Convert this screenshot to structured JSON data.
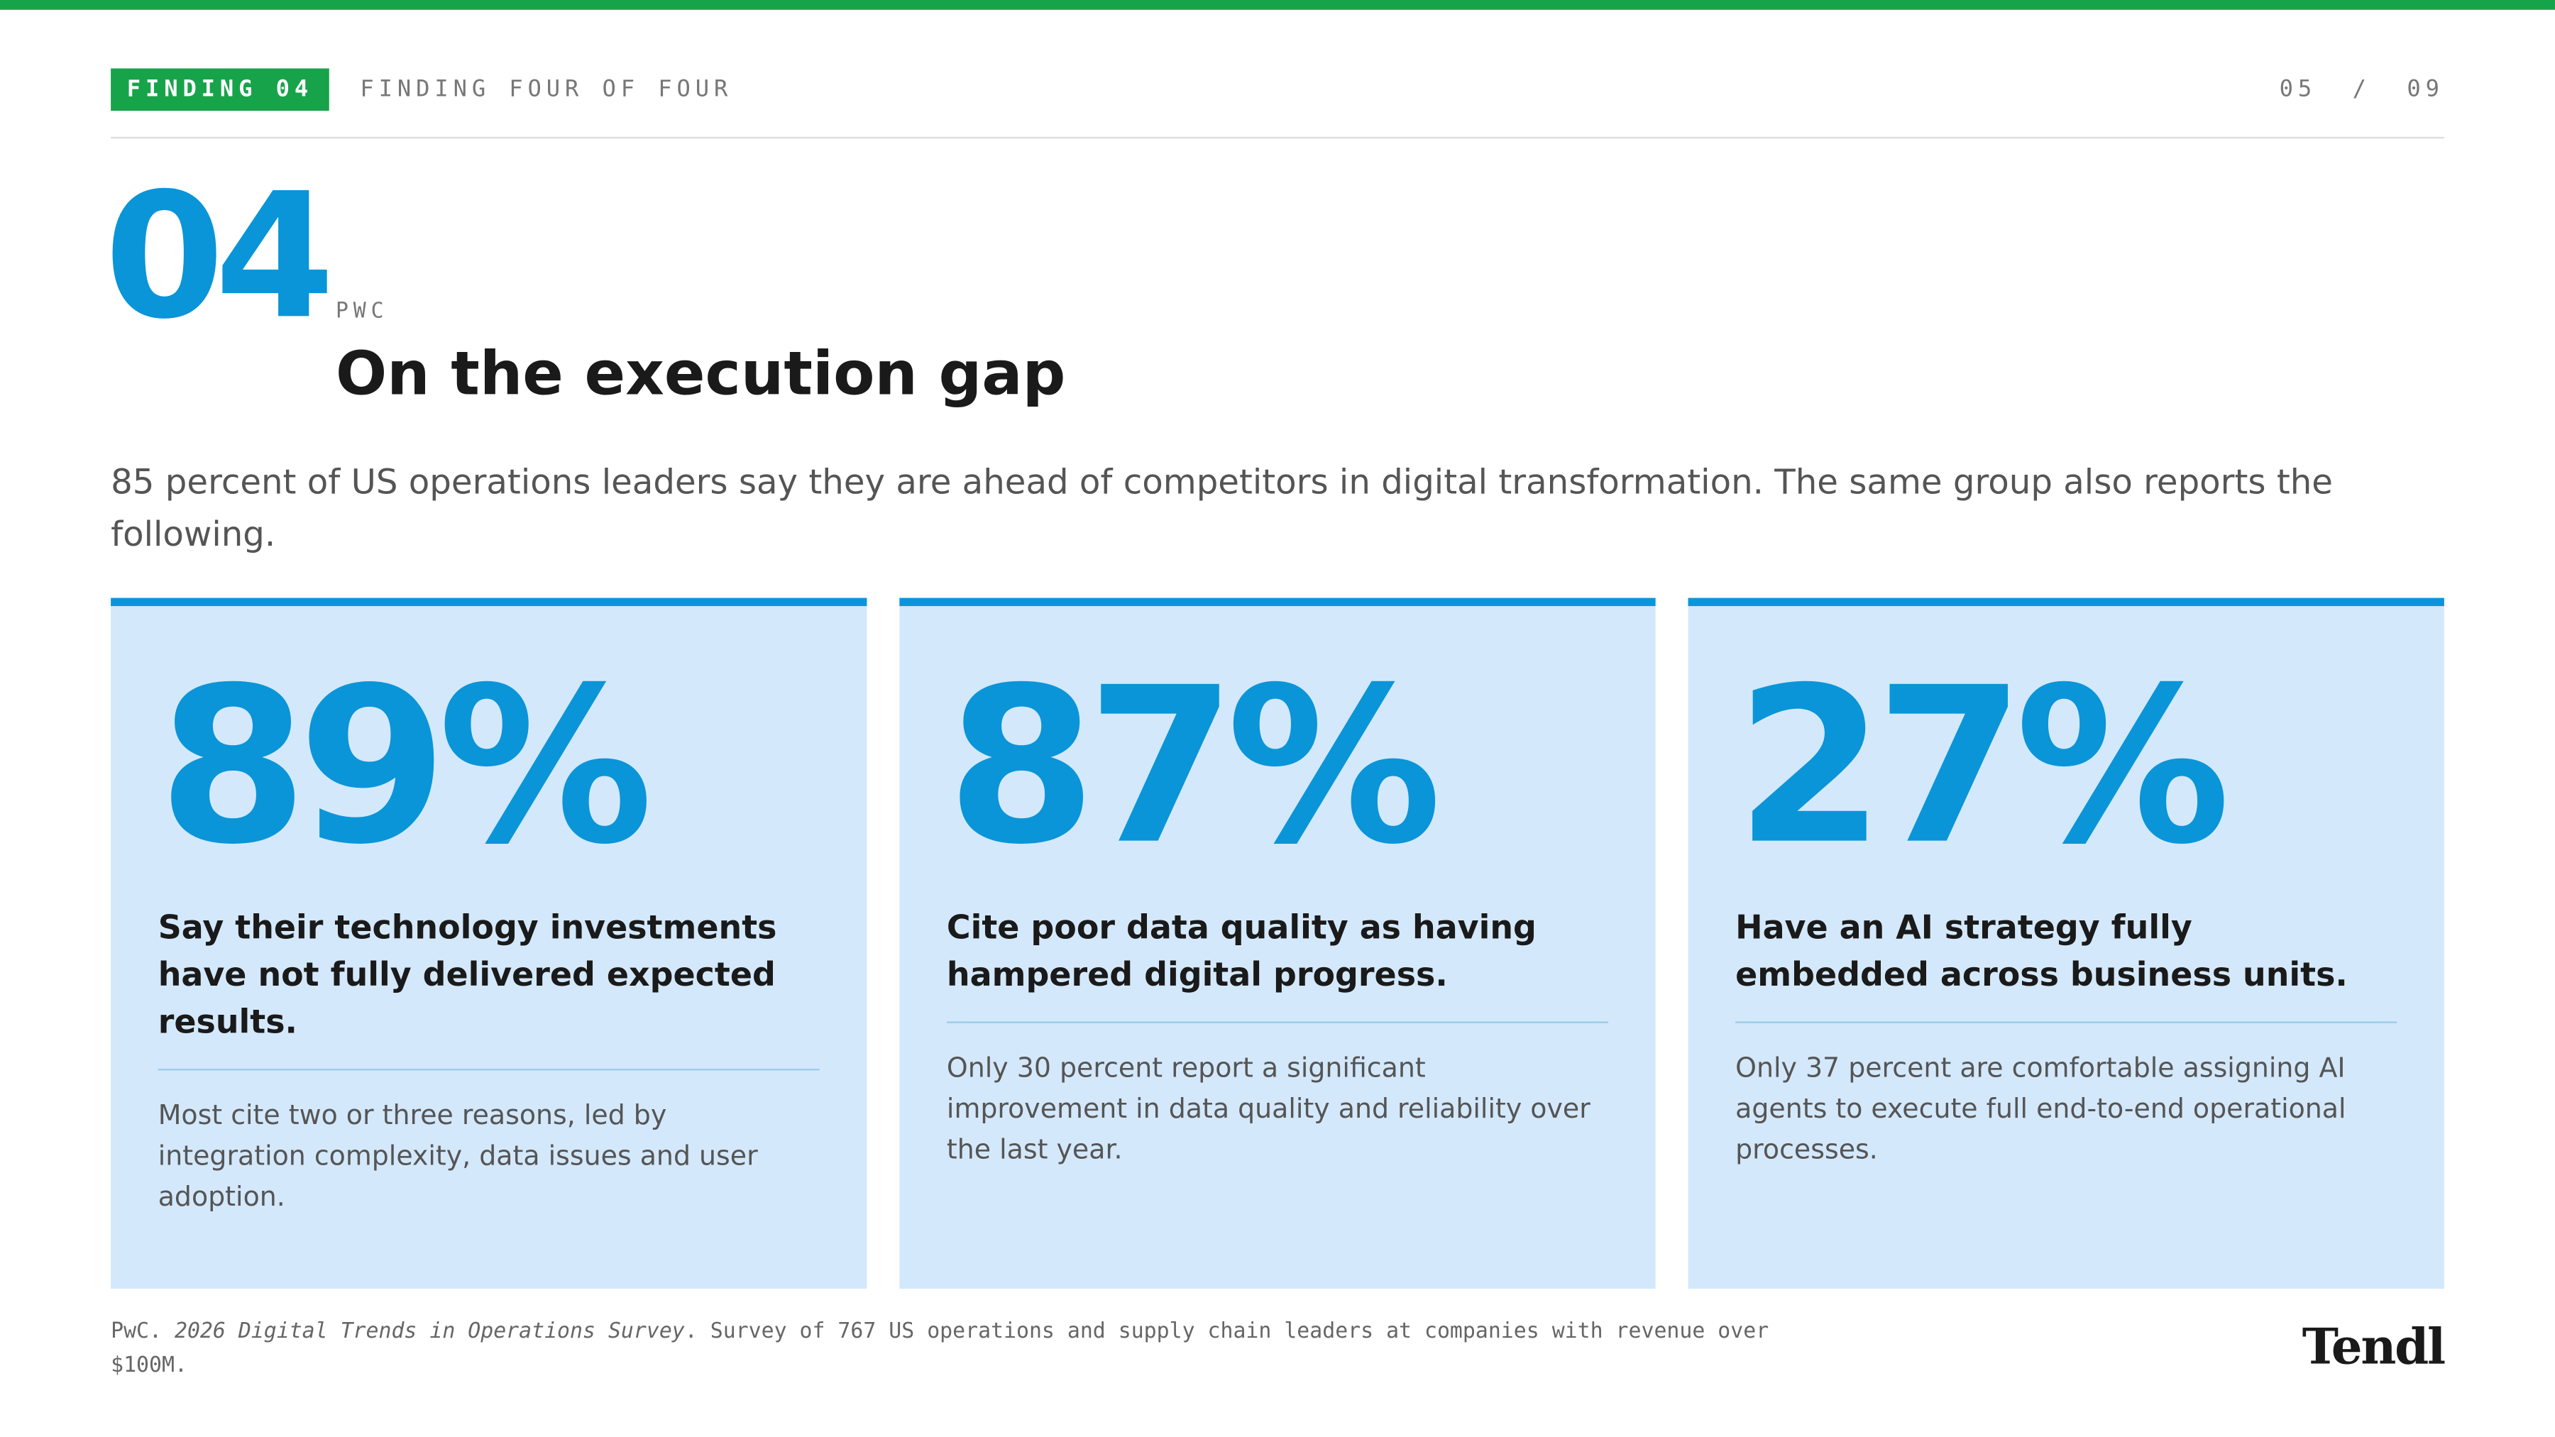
{
  "header": {
    "badge": "FINDING 04",
    "label": "FINDING FOUR OF FOUR",
    "page_current": "05",
    "page_separator": "/",
    "page_total": "09"
  },
  "finding": {
    "number": "04",
    "source": "PWC",
    "title": "On the execution gap",
    "intro": "85 percent of US operations leaders say they are ahead of competitors in digital transformation. The same group also reports the following."
  },
  "cards": [
    {
      "stat": "89%",
      "headline": "Say their technology investments have not fully delivered expected results.",
      "detail": "Most cite two or three reasons, led by integration complexity, data issues and user adoption."
    },
    {
      "stat": "87%",
      "headline": "Cite poor data quality as having hampered digital progress.",
      "detail": "Only 30 percent report a significant improvement in data quality and reliability over the last year."
    },
    {
      "stat": "27%",
      "headline": "Have an AI strategy fully embedded across business units.",
      "detail": "Only 37 percent are comfortable assigning AI agents to execute full end-to-end operational processes."
    }
  ],
  "footer": {
    "source_prefix": "PwC. ",
    "source_title": "2026 Digital Trends in Operations Survey",
    "source_suffix": ". Survey of 767 US operations and supply chain leaders at companies with revenue over $100M.",
    "logo": "Tendl"
  }
}
